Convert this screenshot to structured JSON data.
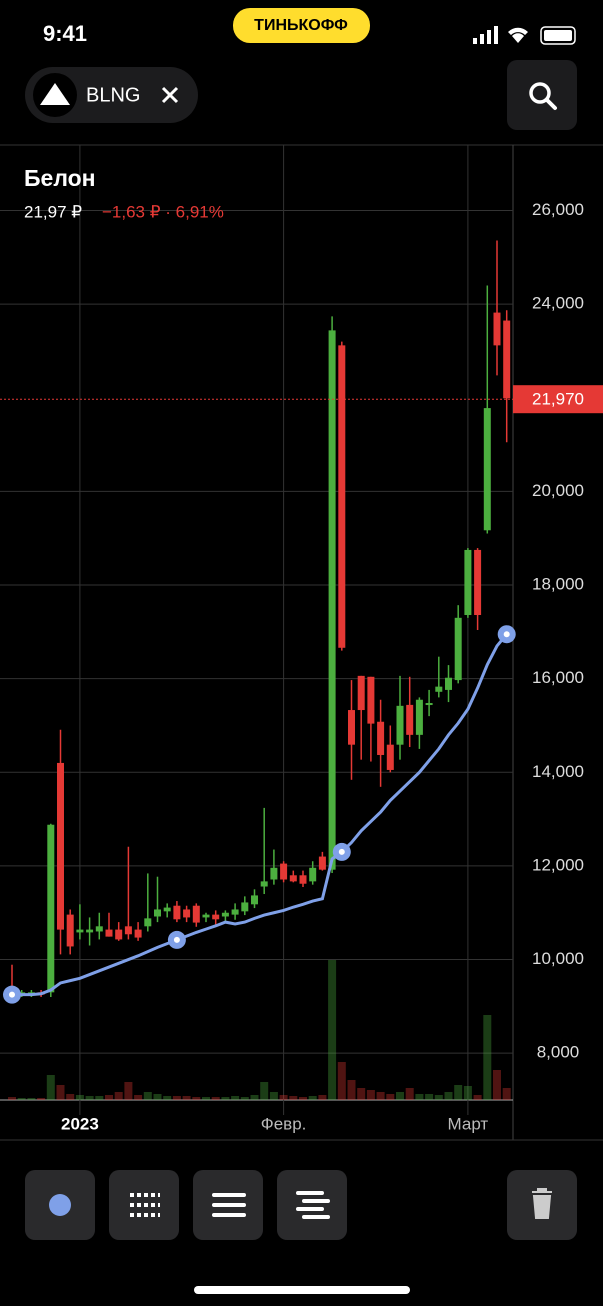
{
  "status_bar": {
    "time": "9:41"
  },
  "header": {
    "badge": "ТИНЬКОФФ",
    "ticker": "BLNG"
  },
  "chart_data": {
    "type": "candlestick",
    "title": "Белон",
    "subtitle": "21,97 ₽",
    "annotation": "−1,63 ₽ · 6,91%",
    "categories": [
      null,
      null,
      null,
      null,
      null,
      null,
      null,
      "2023",
      null,
      null,
      null,
      null,
      null,
      null,
      null,
      null,
      null,
      null,
      null,
      null,
      null,
      null,
      null,
      null,
      null,
      null,
      null,
      null,
      "Февр.",
      null,
      null,
      null,
      null,
      null,
      null,
      null,
      null,
      null,
      null,
      null,
      null,
      null,
      null,
      null,
      null,
      null,
      null,
      "Март",
      null,
      null,
      null,
      null
    ],
    "open": [
      9300,
      9250,
      9250,
      9300,
      9300,
      14200,
      10960,
      10580,
      10580,
      10600,
      10640,
      10640,
      10710,
      10640,
      10710,
      10920,
      11030,
      11150,
      11070,
      11150,
      10900,
      10960,
      10920,
      10960,
      11030,
      11180,
      11560,
      11710,
      12050,
      11800,
      11800,
      11670,
      12200,
      11920,
      23120,
      15330,
      16060,
      16040,
      15080,
      14590,
      14590,
      15440,
      14800,
      15440,
      15720,
      15760,
      15970,
      17360,
      18750,
      19170,
      23820,
      23650
    ],
    "high": [
      9890,
      9350,
      9350,
      9350,
      12900,
      14910,
      11070,
      11180,
      10900,
      11000,
      11000,
      10800,
      12410,
      10800,
      11840,
      11770,
      11200,
      11250,
      11150,
      11200,
      11000,
      11050,
      11050,
      11200,
      11350,
      11500,
      13240,
      12350,
      12100,
      11900,
      11900,
      12100,
      12300,
      23740,
      23200,
      15970,
      16060,
      16040,
      15550,
      15000,
      16060,
      16040,
      15600,
      15760,
      16470,
      16290,
      17570,
      18790,
      18790,
      24400,
      25360,
      23870
    ],
    "low": [
      9150,
      9200,
      9200,
      9200,
      9200,
      10110,
      10110,
      10430,
      10300,
      10430,
      10490,
      10400,
      10430,
      10400,
      10600,
      10800,
      10900,
      10800,
      10800,
      10700,
      10800,
      10750,
      10800,
      10850,
      10950,
      11100,
      11400,
      11600,
      11650,
      11650,
      11550,
      11600,
      11900,
      11850,
      16600,
      13840,
      14270,
      14230,
      13690,
      14000,
      14270,
      14540,
      14500,
      15200,
      15600,
      15500,
      15900,
      17300,
      17040,
      19100,
      22480,
      21050
    ],
    "close": [
      9250,
      9300,
      9300,
      9250,
      12880,
      10640,
      10280,
      10640,
      10640,
      10710,
      10490,
      10430,
      10540,
      10470,
      10880,
      11070,
      11110,
      10860,
      10900,
      10790,
      10960,
      10860,
      11000,
      11070,
      11220,
      11370,
      11670,
      11960,
      11710,
      11670,
      11620,
      11960,
      11920,
      23440,
      16660,
      14590,
      15330,
      15040,
      14370,
      14050,
      15420,
      14800,
      15550,
      15480,
      15830,
      16020,
      17300,
      18750,
      17360,
      21780,
      23120,
      21990
    ],
    "up_color": "#4caf3f",
    "down_color": "#e53935",
    "ma": {
      "color": "#7fa0e8",
      "values": [
        9250,
        9250,
        9250,
        9270,
        9350,
        9500,
        9550,
        9600,
        9680,
        9760,
        9840,
        9920,
        10000,
        10080,
        10170,
        10260,
        10340,
        10420,
        10500,
        10580,
        10650,
        10720,
        10800,
        10760,
        10800,
        10880,
        10950,
        11000,
        11050,
        11120,
        11180,
        11250,
        11300,
        12150,
        12300,
        12500,
        12750,
        12950,
        13150,
        13400,
        13600,
        13800,
        14000,
        14250,
        14500,
        14800,
        15050,
        15350,
        15800,
        16300,
        16700,
        16950
      ]
    },
    "volume": {
      "values": [
        3,
        2,
        2,
        2,
        25,
        15,
        6,
        5,
        4,
        4,
        5,
        8,
        18,
        5,
        8,
        6,
        4,
        4,
        4,
        3,
        3,
        3,
        3,
        4,
        3,
        5,
        18,
        8,
        5,
        4,
        3,
        4,
        5,
        140,
        38,
        20,
        12,
        10,
        8,
        6,
        8,
        12,
        6,
        6,
        5,
        8,
        15,
        14,
        5,
        85,
        30,
        12
      ]
    },
    "ylim": [
      7000,
      27400
    ],
    "yticks": [
      {
        "value": 8000,
        "label": "8,000"
      },
      {
        "value": 10000,
        "label": "10,000"
      },
      {
        "value": 12000,
        "label": "12,000"
      },
      {
        "value": 14000,
        "label": "14,000"
      },
      {
        "value": 16000,
        "label": "16,000"
      },
      {
        "value": 18000,
        "label": "18,000"
      },
      {
        "value": 20000,
        "label": "20,000"
      },
      {
        "value": 24000,
        "label": "24,000"
      },
      {
        "value": 26000,
        "label": "26,000"
      }
    ],
    "price_line": {
      "value": 21970,
      "label": "21,970"
    },
    "grid": true
  }
}
